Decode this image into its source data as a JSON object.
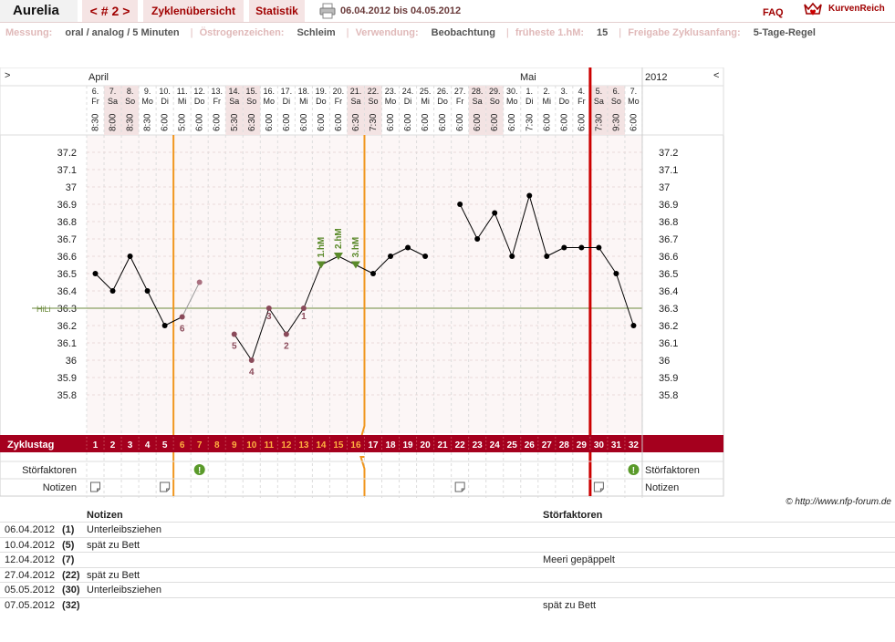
{
  "header": {
    "user": "Aurelia",
    "cycle_prev": "<",
    "cycle_label": "# 2",
    "cycle_next": ">",
    "tab_overview": "Zyklenübersicht",
    "tab_stats": "Statistik",
    "print_icon": "printer-icon",
    "dates": "06.04.2012 bis 04.05.2012",
    "faq": "FAQ",
    "brand": "KurvenReich",
    "brand_icon": "crown-heart-icon"
  },
  "meta": {
    "messung_label": "Messung:",
    "messung_value": "oral / analog / 5 Minuten",
    "oestro_label": "Östrogenzeichen:",
    "oestro_value": "Schleim",
    "verw_label": "Verwendung:",
    "verw_value": "Beobachtung",
    "hm_label": "früheste 1.hM:",
    "hm_value": "15",
    "freigabe_label": "Freigabe Zyklusanfang:",
    "freigabe_value": "5-Tage-Regel"
  },
  "chart_data": {
    "type": "line",
    "nav_left": ">",
    "nav_right": "<",
    "month_april": "April",
    "month_mai": "Mai",
    "year": "2012",
    "days": [
      "6.",
      "7.",
      "8.",
      "9.",
      "10.",
      "11.",
      "12.",
      "13.",
      "14.",
      "15.",
      "16.",
      "17.",
      "18.",
      "19.",
      "20.",
      "21.",
      "22.",
      "23.",
      "24.",
      "25.",
      "26.",
      "27.",
      "28.",
      "29.",
      "30.",
      "1.",
      "2.",
      "3.",
      "4.",
      "5.",
      "6.",
      "7."
    ],
    "weekdays": [
      "Fr",
      "Sa",
      "So",
      "Mo",
      "Di",
      "Mi",
      "Do",
      "Fr",
      "Sa",
      "So",
      "Mo",
      "Di",
      "Mi",
      "Do",
      "Fr",
      "Sa",
      "So",
      "Mo",
      "Di",
      "Mi",
      "Do",
      "Fr",
      "Sa",
      "So",
      "Mo",
      "Di",
      "Mi",
      "Do",
      "Fr",
      "Sa",
      "So",
      "Mo"
    ],
    "times": [
      "8:30",
      "8:00",
      "8:30",
      "8:30",
      "6:00",
      "5:00",
      "6:00",
      "6:00",
      "5:30",
      "6:30",
      "6:00",
      "6:00",
      "6:00",
      "6:00",
      "6:00",
      "6:30",
      "7:30",
      "6:00",
      "6:00",
      "6:00",
      "6:00",
      "6:00",
      "6:00",
      "6:00",
      "6:00",
      "7:30",
      "6:00",
      "6:00",
      "6:00",
      "7:30",
      "9:30",
      "6:00"
    ],
    "shaded_days": [
      1,
      2,
      8,
      9,
      15,
      16,
      22,
      23,
      29,
      30
    ],
    "ylim": [
      35.7,
      37.3
    ],
    "yticks": [
      "37.2",
      "37.1",
      "37",
      "36.9",
      "36.8",
      "36.7",
      "36.6",
      "36.5",
      "36.4",
      "36.3",
      "36.2",
      "36.1",
      "36",
      "35.9",
      "35.8"
    ],
    "temps": [
      36.5,
      36.4,
      36.6,
      36.4,
      36.2,
      36.25,
      36.45,
      null,
      36.15,
      36.0,
      36.3,
      36.15,
      36.3,
      36.55,
      36.6,
      36.55,
      36.5,
      36.6,
      36.65,
      36.6,
      null,
      36.9,
      36.7,
      36.85,
      36.6,
      36.95,
      36.6,
      36.65,
      36.65,
      36.65,
      36.5,
      36.2
    ],
    "excluded_days": [
      6
    ],
    "low_labels": [
      {
        "day": 6,
        "text": "6"
      },
      {
        "day": 9,
        "text": "5"
      },
      {
        "day": 10,
        "text": "4"
      },
      {
        "day": 11,
        "text": "3"
      },
      {
        "day": 12,
        "text": "2"
      },
      {
        "day": 13,
        "text": "1"
      }
    ],
    "high_labels": [
      {
        "day": 14,
        "text": "1.hM"
      },
      {
        "day": 15,
        "text": "2.hM"
      },
      {
        "day": 16,
        "text": "3.hM"
      }
    ],
    "hili_label": "HiLi",
    "hili_value": 36.3,
    "cycle_day_label": "Zyklustag",
    "cycle_days": [
      "1",
      "2",
      "3",
      "4",
      "5",
      "6",
      "7",
      "8",
      "9",
      "10",
      "11",
      "12",
      "13",
      "14",
      "15",
      "16",
      "17",
      "18",
      "19",
      "20",
      "21",
      "22",
      "23",
      "24",
      "25",
      "26",
      "27",
      "28",
      "29",
      "30",
      "31",
      "32"
    ],
    "fertile_days": [
      6,
      7,
      8,
      9,
      10,
      11,
      12,
      13,
      14,
      15,
      16
    ],
    "stoer_label": "Störfaktoren",
    "stoer_days": [
      7,
      32
    ],
    "notiz_label": "Notizen",
    "notiz_days": [
      1,
      5,
      22,
      30
    ],
    "line_colors": {
      "orange": "#f0961e",
      "red": "#cc0000",
      "hili": "#6b8a3c",
      "green": "#5a8a2a",
      "bar": "#a5001e"
    }
  },
  "table": {
    "col_notes": "Notizen",
    "col_stoer": "Störfaktoren",
    "rows": [
      {
        "date": "06.04.2012",
        "day": "(1)",
        "note": "Unterleibsziehen",
        "stoer": ""
      },
      {
        "date": "10.04.2012",
        "day": "(5)",
        "note": "spät zu Bett",
        "stoer": ""
      },
      {
        "date": "12.04.2012",
        "day": "(7)",
        "note": "",
        "stoer": "Meeri gepäppelt"
      },
      {
        "date": "27.04.2012",
        "day": "(22)",
        "note": "spät zu Bett",
        "stoer": ""
      },
      {
        "date": "05.05.2012",
        "day": "(30)",
        "note": "Unterleibsziehen",
        "stoer": ""
      },
      {
        "date": "07.05.2012",
        "day": "(32)",
        "note": "",
        "stoer": "spät zu Bett"
      }
    ]
  },
  "copyright": "© http://www.nfp-forum.de"
}
